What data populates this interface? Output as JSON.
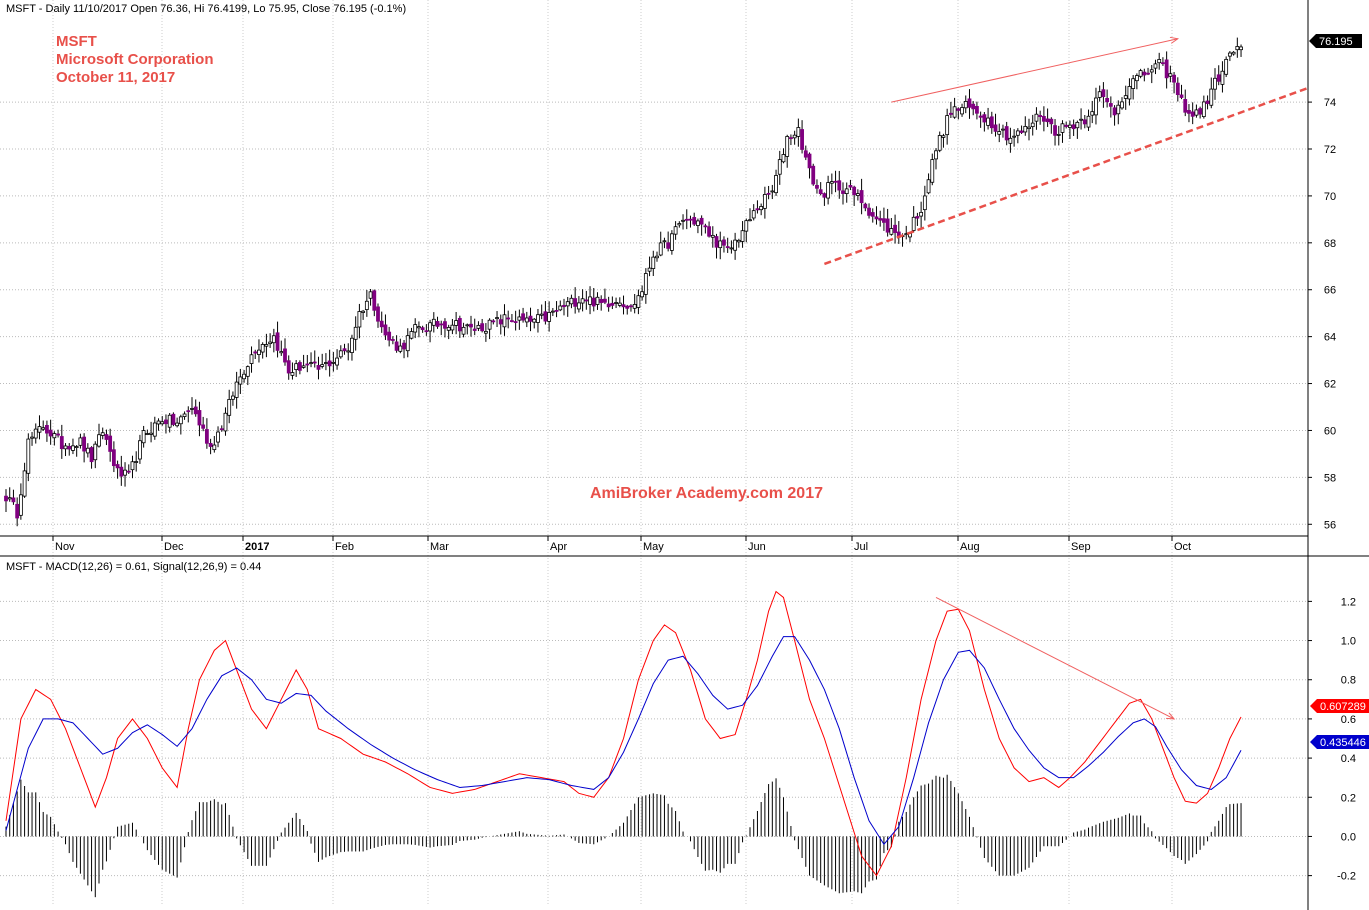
{
  "chart_data": [
    {
      "type": "candlestick",
      "header": "MSFT - Daily 11/10/2017 Open 76.36, Hi 76.4199, Lo 75.95, Close 76.195 (-0.1%)",
      "annotations": [
        "MSFT",
        "Microsoft Corporation",
        "October 11, 2017"
      ],
      "watermark": "AmiBroker Academy.com 2017",
      "ylim": [
        55.5,
        77.5
      ],
      "yticks": [
        "56",
        "58",
        "60",
        "62",
        "64",
        "66",
        "68",
        "70",
        "72",
        "74"
      ],
      "xlabels": [
        "Nov",
        "Dec",
        "2017",
        "Feb",
        "Mar",
        "Apr",
        "May",
        "Jun",
        "Jul",
        "Aug",
        "Sep",
        "Oct"
      ],
      "close_label": "76.195",
      "up_color": "#ffffff",
      "down_color": "#800080",
      "close_keypoints": [
        [
          0,
          57.2
        ],
        [
          3,
          56.5
        ],
        [
          6,
          59.5
        ],
        [
          10,
          60.2
        ],
        [
          15,
          59.4
        ],
        [
          20,
          59.5
        ],
        [
          23,
          58.8
        ],
        [
          26,
          60.0
        ],
        [
          30,
          58.2
        ],
        [
          33,
          58.0
        ],
        [
          37,
          59.8
        ],
        [
          42,
          60.5
        ],
        [
          46,
          60.3
        ],
        [
          50,
          61.0
        ],
        [
          55,
          59.3
        ],
        [
          58,
          60.2
        ],
        [
          62,
          62.0
        ],
        [
          67,
          63.5
        ],
        [
          72,
          64.0
        ],
        [
          76,
          62.5
        ],
        [
          80,
          62.8
        ],
        [
          84,
          62.6
        ],
        [
          88,
          63.0
        ],
        [
          92,
          63.5
        ],
        [
          95,
          65.0
        ],
        [
          98,
          65.8
        ],
        [
          102,
          64.0
        ],
        [
          106,
          63.5
        ],
        [
          110,
          64.3
        ],
        [
          115,
          64.5
        ],
        [
          120,
          64.6
        ],
        [
          125,
          64.3
        ],
        [
          130,
          64.5
        ],
        [
          135,
          64.8
        ],
        [
          140,
          64.6
        ],
        [
          145,
          64.8
        ],
        [
          150,
          65.3
        ],
        [
          155,
          65.7
        ],
        [
          160,
          65.4
        ],
        [
          165,
          65.6
        ],
        [
          168,
          65.2
        ],
        [
          171,
          66.0
        ],
        [
          174,
          67.5
        ],
        [
          178,
          68.0
        ],
        [
          182,
          69.0
        ],
        [
          186,
          68.9
        ],
        [
          190,
          68.2
        ],
        [
          194,
          67.6
        ],
        [
          198,
          68.5
        ],
        [
          202,
          69.5
        ],
        [
          206,
          70.2
        ],
        [
          210,
          72.5
        ],
        [
          213,
          72.8
        ],
        [
          216,
          71.0
        ],
        [
          219,
          70.0
        ],
        [
          222,
          70.5
        ],
        [
          226,
          70.3
        ],
        [
          230,
          69.8
        ],
        [
          234,
          69.0
        ],
        [
          238,
          68.5
        ],
        [
          242,
          68.3
        ],
        [
          246,
          69.5
        ],
        [
          250,
          72.0
        ],
        [
          254,
          73.6
        ],
        [
          258,
          73.8
        ],
        [
          262,
          73.5
        ],
        [
          266,
          73.0
        ],
        [
          270,
          72.5
        ],
        [
          274,
          72.8
        ],
        [
          278,
          73.5
        ],
        [
          282,
          72.8
        ],
        [
          286,
          73.0
        ],
        [
          290,
          73.3
        ],
        [
          294,
          74.3
        ],
        [
          298,
          73.6
        ],
        [
          302,
          74.8
        ],
        [
          306,
          75.2
        ],
        [
          310,
          75.6
        ],
        [
          313,
          75.1
        ],
        [
          316,
          74.0
        ],
        [
          319,
          73.4
        ],
        [
          322,
          73.8
        ],
        [
          325,
          74.8
        ],
        [
          328,
          75.7
        ],
        [
          331,
          76.4
        ],
        [
          332,
          76.2
        ]
      ],
      "trendlines": [
        {
          "style": "solid",
          "from": [
            238,
            74.0
          ],
          "to": [
            315,
            76.7
          ]
        },
        {
          "style": "dashed",
          "from": [
            220,
            67.1
          ],
          "to": [
            350,
            74.6
          ]
        }
      ]
    },
    {
      "type": "line",
      "title": "MSFT - MACD(12,26) = 0.61, Signal(12,26,9) = 0.44",
      "ylim": [
        -0.35,
        1.35
      ],
      "yticks": [
        "-0.2",
        "0.0",
        "0.2",
        "0.4",
        "0.6",
        "0.8",
        "1.0",
        "1.2"
      ],
      "series": [
        {
          "name": "MACD(12,26)",
          "color": "#ff0000",
          "value_label": "0.607289",
          "values": [
            [
              0,
              0.08
            ],
            [
              4,
              0.6
            ],
            [
              8,
              0.75
            ],
            [
              12,
              0.7
            ],
            [
              16,
              0.55
            ],
            [
              20,
              0.35
            ],
            [
              24,
              0.15
            ],
            [
              27,
              0.3
            ],
            [
              30,
              0.5
            ],
            [
              34,
              0.6
            ],
            [
              38,
              0.5
            ],
            [
              42,
              0.35
            ],
            [
              46,
              0.25
            ],
            [
              49,
              0.55
            ],
            [
              52,
              0.8
            ],
            [
              56,
              0.95
            ],
            [
              59,
              1.0
            ],
            [
              62,
              0.85
            ],
            [
              66,
              0.65
            ],
            [
              70,
              0.55
            ],
            [
              74,
              0.7
            ],
            [
              78,
              0.85
            ],
            [
              81,
              0.75
            ],
            [
              84,
              0.55
            ],
            [
              90,
              0.5
            ],
            [
              96,
              0.42
            ],
            [
              102,
              0.38
            ],
            [
              108,
              0.32
            ],
            [
              114,
              0.25
            ],
            [
              120,
              0.22
            ],
            [
              126,
              0.24
            ],
            [
              132,
              0.28
            ],
            [
              138,
              0.32
            ],
            [
              144,
              0.3
            ],
            [
              150,
              0.28
            ],
            [
              154,
              0.22
            ],
            [
              158,
              0.2
            ],
            [
              162,
              0.3
            ],
            [
              166,
              0.5
            ],
            [
              170,
              0.8
            ],
            [
              174,
              1.0
            ],
            [
              177,
              1.08
            ],
            [
              180,
              1.04
            ],
            [
              184,
              0.85
            ],
            [
              188,
              0.6
            ],
            [
              192,
              0.5
            ],
            [
              196,
              0.52
            ],
            [
              199,
              0.7
            ],
            [
              202,
              0.9
            ],
            [
              205,
              1.15
            ],
            [
              207,
              1.25
            ],
            [
              209,
              1.22
            ],
            [
              212,
              1.0
            ],
            [
              216,
              0.7
            ],
            [
              220,
              0.5
            ],
            [
              225,
              0.2
            ],
            [
              230,
              -0.1
            ],
            [
              234,
              -0.2
            ],
            [
              238,
              -0.05
            ],
            [
              242,
              0.3
            ],
            [
              246,
              0.7
            ],
            [
              250,
              1.0
            ],
            [
              253,
              1.15
            ],
            [
              256,
              1.16
            ],
            [
              259,
              1.05
            ],
            [
              263,
              0.75
            ],
            [
              267,
              0.5
            ],
            [
              271,
              0.35
            ],
            [
              275,
              0.28
            ],
            [
              279,
              0.3
            ],
            [
              283,
              0.25
            ],
            [
              286,
              0.3
            ],
            [
              290,
              0.38
            ],
            [
              294,
              0.48
            ],
            [
              298,
              0.58
            ],
            [
              302,
              0.68
            ],
            [
              305,
              0.7
            ],
            [
              308,
              0.6
            ],
            [
              311,
              0.45
            ],
            [
              314,
              0.3
            ],
            [
              317,
              0.18
            ],
            [
              320,
              0.17
            ],
            [
              323,
              0.22
            ],
            [
              326,
              0.35
            ],
            [
              329,
              0.5
            ],
            [
              332,
              0.61
            ]
          ]
        },
        {
          "name": "Signal(12,26,9)",
          "color": "#0000cc",
          "value_label": "0.435446",
          "values": [
            [
              0,
              0.03
            ],
            [
              6,
              0.45
            ],
            [
              10,
              0.6
            ],
            [
              14,
              0.6
            ],
            [
              18,
              0.58
            ],
            [
              22,
              0.5
            ],
            [
              26,
              0.42
            ],
            [
              30,
              0.45
            ],
            [
              34,
              0.53
            ],
            [
              38,
              0.57
            ],
            [
              42,
              0.52
            ],
            [
              46,
              0.46
            ],
            [
              50,
              0.55
            ],
            [
              54,
              0.7
            ],
            [
              58,
              0.82
            ],
            [
              62,
              0.86
            ],
            [
              66,
              0.8
            ],
            [
              70,
              0.7
            ],
            [
              74,
              0.68
            ],
            [
              78,
              0.73
            ],
            [
              82,
              0.72
            ],
            [
              86,
              0.64
            ],
            [
              92,
              0.55
            ],
            [
              98,
              0.47
            ],
            [
              104,
              0.4
            ],
            [
              110,
              0.34
            ],
            [
              116,
              0.29
            ],
            [
              122,
              0.25
            ],
            [
              128,
              0.26
            ],
            [
              134,
              0.28
            ],
            [
              140,
              0.3
            ],
            [
              146,
              0.29
            ],
            [
              152,
              0.26
            ],
            [
              158,
              0.24
            ],
            [
              162,
              0.3
            ],
            [
              166,
              0.43
            ],
            [
              170,
              0.6
            ],
            [
              174,
              0.78
            ],
            [
              178,
              0.9
            ],
            [
              182,
              0.92
            ],
            [
              186,
              0.83
            ],
            [
              190,
              0.72
            ],
            [
              194,
              0.65
            ],
            [
              198,
              0.67
            ],
            [
              202,
              0.77
            ],
            [
              206,
              0.92
            ],
            [
              209,
              1.02
            ],
            [
              212,
              1.02
            ],
            [
              216,
              0.9
            ],
            [
              220,
              0.75
            ],
            [
              224,
              0.55
            ],
            [
              228,
              0.3
            ],
            [
              232,
              0.08
            ],
            [
              236,
              -0.04
            ],
            [
              240,
              0.05
            ],
            [
              244,
              0.3
            ],
            [
              248,
              0.58
            ],
            [
              252,
              0.8
            ],
            [
              256,
              0.94
            ],
            [
              259,
              0.95
            ],
            [
              263,
              0.86
            ],
            [
              267,
              0.7
            ],
            [
              271,
              0.55
            ],
            [
              275,
              0.44
            ],
            [
              279,
              0.35
            ],
            [
              283,
              0.3
            ],
            [
              287,
              0.3
            ],
            [
              291,
              0.36
            ],
            [
              295,
              0.43
            ],
            [
              299,
              0.51
            ],
            [
              303,
              0.58
            ],
            [
              306,
              0.6
            ],
            [
              309,
              0.56
            ],
            [
              312,
              0.46
            ],
            [
              316,
              0.34
            ],
            [
              320,
              0.26
            ],
            [
              324,
              0.24
            ],
            [
              328,
              0.3
            ],
            [
              332,
              0.44
            ]
          ]
        },
        {
          "name": "MACD Histogram",
          "type": "bar",
          "color": "#000000",
          "note": "difference of MACD and Signal"
        }
      ],
      "trendline": {
        "from": [
          250,
          1.22
        ],
        "to": [
          314,
          0.6
        ]
      }
    }
  ]
}
